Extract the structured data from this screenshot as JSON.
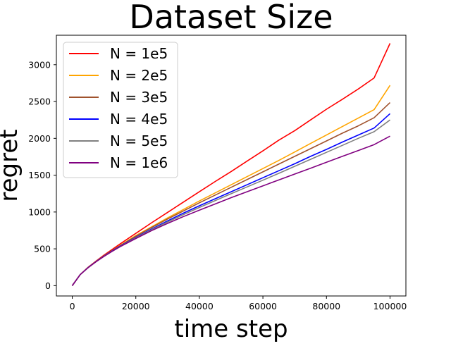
{
  "chart_data": {
    "type": "line",
    "title": "Dataset Size",
    "xlabel": "time step",
    "ylabel": "regret",
    "xlim": [
      -5000,
      105000
    ],
    "ylim": [
      -140,
      3400
    ],
    "xticks": [
      0,
      20000,
      40000,
      60000,
      80000,
      100000
    ],
    "yticks": [
      0,
      500,
      1000,
      1500,
      2000,
      2500,
      3000
    ],
    "grid": false,
    "legend_position": "top-left",
    "x": [
      0,
      2500,
      5000,
      7500,
      10000,
      12500,
      15000,
      20000,
      25000,
      30000,
      35000,
      40000,
      45000,
      50000,
      55000,
      60000,
      65000,
      70000,
      75000,
      80000,
      85000,
      90000,
      95000,
      100000
    ],
    "series": [
      {
        "name": "N = 1e5",
        "color": "#ff0000",
        "values": [
          0,
          150,
          250,
          335,
          415,
          490,
          565,
          710,
          855,
          995,
          1135,
          1275,
          1415,
          1550,
          1690,
          1830,
          1975,
          2105,
          2250,
          2395,
          2530,
          2670,
          2820,
          3290
        ]
      },
      {
        "name": "N = 2e5",
        "color": "#ffa500",
        "values": [
          0,
          150,
          248,
          330,
          405,
          475,
          545,
          680,
          800,
          920,
          1035,
          1150,
          1260,
          1370,
          1480,
          1590,
          1700,
          1815,
          1930,
          2045,
          2160,
          2275,
          2390,
          2720
        ]
      },
      {
        "name": "N = 3e5",
        "color": "#a0522d",
        "values": [
          0,
          150,
          248,
          330,
          405,
          475,
          540,
          670,
          790,
          905,
          1015,
          1125,
          1230,
          1335,
          1440,
          1545,
          1650,
          1755,
          1860,
          1965,
          2070,
          2170,
          2280,
          2485
        ]
      },
      {
        "name": "N = 4e5",
        "color": "#0000ff",
        "values": [
          0,
          150,
          247,
          328,
          402,
          470,
          535,
          655,
          770,
          880,
          985,
          1085,
          1180,
          1275,
          1370,
          1465,
          1560,
          1655,
          1755,
          1850,
          1950,
          2045,
          2140,
          2335
        ]
      },
      {
        "name": "N = 5e5",
        "color": "#808080",
        "values": [
          0,
          150,
          246,
          326,
          400,
          467,
          530,
          648,
          760,
          865,
          965,
          1062,
          1155,
          1248,
          1340,
          1432,
          1525,
          1620,
          1715,
          1810,
          1905,
          2000,
          2090,
          2250
        ]
      },
      {
        "name": "N = 1e6",
        "color": "#800080",
        "values": [
          0,
          150,
          245,
          325,
          398,
          465,
          528,
          640,
          748,
          845,
          938,
          1025,
          1110,
          1195,
          1275,
          1355,
          1435,
          1515,
          1595,
          1675,
          1755,
          1835,
          1915,
          2030
        ]
      }
    ]
  }
}
